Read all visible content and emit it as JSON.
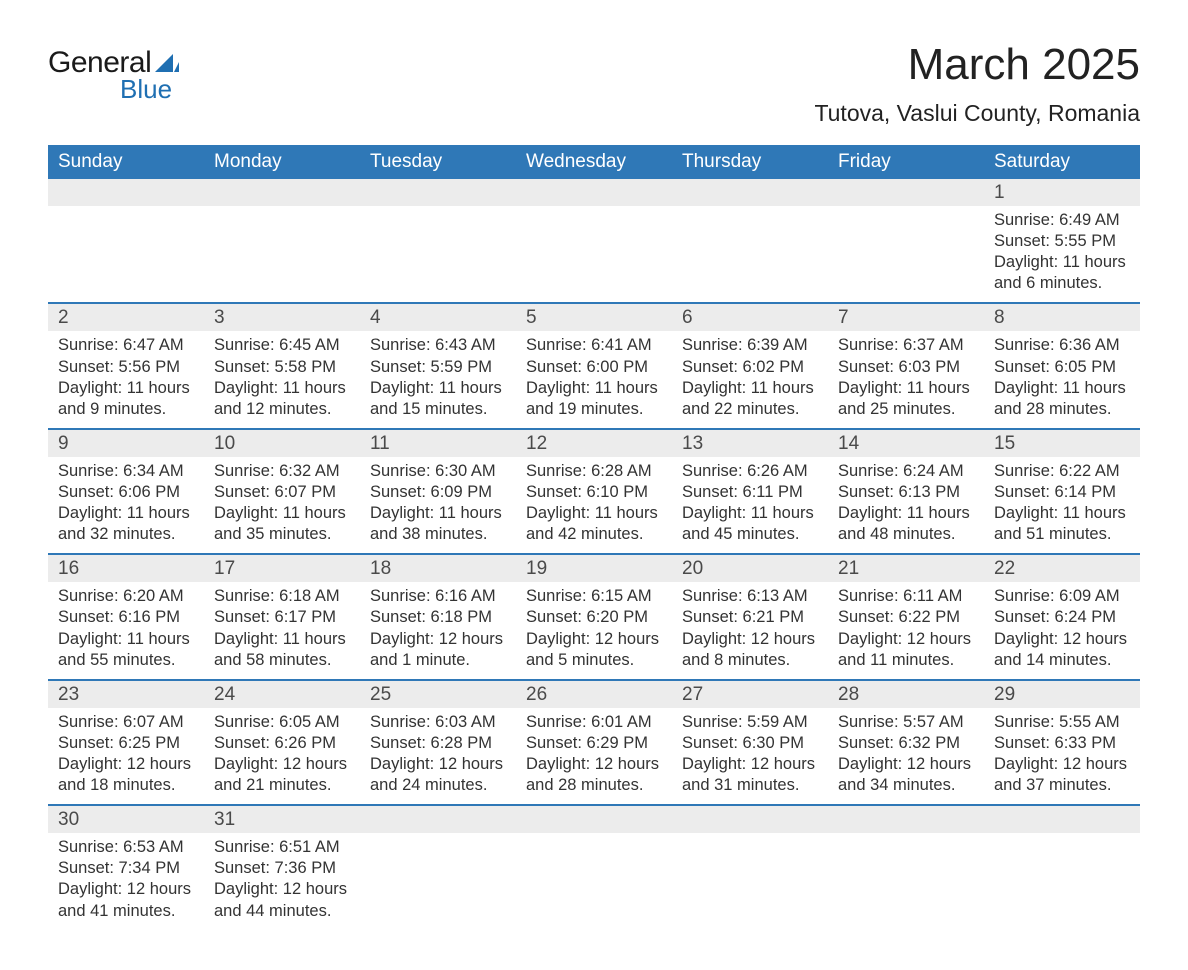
{
  "brand": {
    "name1": "General",
    "name2": "Blue",
    "sail_color": "#1f6fb2",
    "text_color": "#1a1a1a"
  },
  "title": "March 2025",
  "location": "Tutova, Vaslui County, Romania",
  "colors": {
    "header_bg": "#2f78b7",
    "header_text": "#ffffff",
    "daynum_bg": "#ececec",
    "row_divider": "#2f78b7",
    "body_text": "#333333",
    "page_bg": "#ffffff"
  },
  "typography": {
    "title_fontsize": 44,
    "location_fontsize": 23,
    "weekday_fontsize": 19,
    "daynum_fontsize": 19,
    "cell_fontsize": 16.5
  },
  "weekdays": [
    "Sunday",
    "Monday",
    "Tuesday",
    "Wednesday",
    "Thursday",
    "Friday",
    "Saturday"
  ],
  "weeks": [
    [
      null,
      null,
      null,
      null,
      null,
      null,
      {
        "n": "1",
        "sr": "Sunrise: 6:49 AM",
        "ss": "Sunset: 5:55 PM",
        "dl": "Daylight: 11 hours and 6 minutes."
      }
    ],
    [
      {
        "n": "2",
        "sr": "Sunrise: 6:47 AM",
        "ss": "Sunset: 5:56 PM",
        "dl": "Daylight: 11 hours and 9 minutes."
      },
      {
        "n": "3",
        "sr": "Sunrise: 6:45 AM",
        "ss": "Sunset: 5:58 PM",
        "dl": "Daylight: 11 hours and 12 minutes."
      },
      {
        "n": "4",
        "sr": "Sunrise: 6:43 AM",
        "ss": "Sunset: 5:59 PM",
        "dl": "Daylight: 11 hours and 15 minutes."
      },
      {
        "n": "5",
        "sr": "Sunrise: 6:41 AM",
        "ss": "Sunset: 6:00 PM",
        "dl": "Daylight: 11 hours and 19 minutes."
      },
      {
        "n": "6",
        "sr": "Sunrise: 6:39 AM",
        "ss": "Sunset: 6:02 PM",
        "dl": "Daylight: 11 hours and 22 minutes."
      },
      {
        "n": "7",
        "sr": "Sunrise: 6:37 AM",
        "ss": "Sunset: 6:03 PM",
        "dl": "Daylight: 11 hours and 25 minutes."
      },
      {
        "n": "8",
        "sr": "Sunrise: 6:36 AM",
        "ss": "Sunset: 6:05 PM",
        "dl": "Daylight: 11 hours and 28 minutes."
      }
    ],
    [
      {
        "n": "9",
        "sr": "Sunrise: 6:34 AM",
        "ss": "Sunset: 6:06 PM",
        "dl": "Daylight: 11 hours and 32 minutes."
      },
      {
        "n": "10",
        "sr": "Sunrise: 6:32 AM",
        "ss": "Sunset: 6:07 PM",
        "dl": "Daylight: 11 hours and 35 minutes."
      },
      {
        "n": "11",
        "sr": "Sunrise: 6:30 AM",
        "ss": "Sunset: 6:09 PM",
        "dl": "Daylight: 11 hours and 38 minutes."
      },
      {
        "n": "12",
        "sr": "Sunrise: 6:28 AM",
        "ss": "Sunset: 6:10 PM",
        "dl": "Daylight: 11 hours and 42 minutes."
      },
      {
        "n": "13",
        "sr": "Sunrise: 6:26 AM",
        "ss": "Sunset: 6:11 PM",
        "dl": "Daylight: 11 hours and 45 minutes."
      },
      {
        "n": "14",
        "sr": "Sunrise: 6:24 AM",
        "ss": "Sunset: 6:13 PM",
        "dl": "Daylight: 11 hours and 48 minutes."
      },
      {
        "n": "15",
        "sr": "Sunrise: 6:22 AM",
        "ss": "Sunset: 6:14 PM",
        "dl": "Daylight: 11 hours and 51 minutes."
      }
    ],
    [
      {
        "n": "16",
        "sr": "Sunrise: 6:20 AM",
        "ss": "Sunset: 6:16 PM",
        "dl": "Daylight: 11 hours and 55 minutes."
      },
      {
        "n": "17",
        "sr": "Sunrise: 6:18 AM",
        "ss": "Sunset: 6:17 PM",
        "dl": "Daylight: 11 hours and 58 minutes."
      },
      {
        "n": "18",
        "sr": "Sunrise: 6:16 AM",
        "ss": "Sunset: 6:18 PM",
        "dl": "Daylight: 12 hours and 1 minute."
      },
      {
        "n": "19",
        "sr": "Sunrise: 6:15 AM",
        "ss": "Sunset: 6:20 PM",
        "dl": "Daylight: 12 hours and 5 minutes."
      },
      {
        "n": "20",
        "sr": "Sunrise: 6:13 AM",
        "ss": "Sunset: 6:21 PM",
        "dl": "Daylight: 12 hours and 8 minutes."
      },
      {
        "n": "21",
        "sr": "Sunrise: 6:11 AM",
        "ss": "Sunset: 6:22 PM",
        "dl": "Daylight: 12 hours and 11 minutes."
      },
      {
        "n": "22",
        "sr": "Sunrise: 6:09 AM",
        "ss": "Sunset: 6:24 PM",
        "dl": "Daylight: 12 hours and 14 minutes."
      }
    ],
    [
      {
        "n": "23",
        "sr": "Sunrise: 6:07 AM",
        "ss": "Sunset: 6:25 PM",
        "dl": "Daylight: 12 hours and 18 minutes."
      },
      {
        "n": "24",
        "sr": "Sunrise: 6:05 AM",
        "ss": "Sunset: 6:26 PM",
        "dl": "Daylight: 12 hours and 21 minutes."
      },
      {
        "n": "25",
        "sr": "Sunrise: 6:03 AM",
        "ss": "Sunset: 6:28 PM",
        "dl": "Daylight: 12 hours and 24 minutes."
      },
      {
        "n": "26",
        "sr": "Sunrise: 6:01 AM",
        "ss": "Sunset: 6:29 PM",
        "dl": "Daylight: 12 hours and 28 minutes."
      },
      {
        "n": "27",
        "sr": "Sunrise: 5:59 AM",
        "ss": "Sunset: 6:30 PM",
        "dl": "Daylight: 12 hours and 31 minutes."
      },
      {
        "n": "28",
        "sr": "Sunrise: 5:57 AM",
        "ss": "Sunset: 6:32 PM",
        "dl": "Daylight: 12 hours and 34 minutes."
      },
      {
        "n": "29",
        "sr": "Sunrise: 5:55 AM",
        "ss": "Sunset: 6:33 PM",
        "dl": "Daylight: 12 hours and 37 minutes."
      }
    ],
    [
      {
        "n": "30",
        "sr": "Sunrise: 6:53 AM",
        "ss": "Sunset: 7:34 PM",
        "dl": "Daylight: 12 hours and 41 minutes."
      },
      {
        "n": "31",
        "sr": "Sunrise: 6:51 AM",
        "ss": "Sunset: 7:36 PM",
        "dl": "Daylight: 12 hours and 44 minutes."
      },
      null,
      null,
      null,
      null,
      null
    ]
  ]
}
